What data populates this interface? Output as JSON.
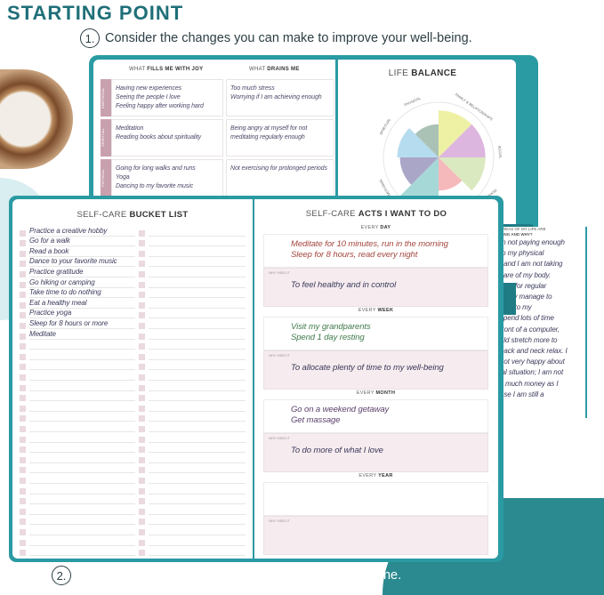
{
  "title": "STARTING POINT",
  "step1": {
    "num": "1.",
    "text": "Consider the changes you can make to improve your well-being."
  },
  "step2": {
    "num": "2.",
    "text": "List the self-care acts you want to include in your routine."
  },
  "colors": {
    "accent": "#1f6f78",
    "cover": "#2a9aa3",
    "tag": "#c9a0ae",
    "why_bg": "#f6ebee"
  },
  "joy": {
    "col1_pre": "WHAT",
    "col1_bold": "FILLS ME WITH JOY",
    "col2_pre": "WHAT",
    "col2_bold": "DRAINS ME",
    "rows": [
      {
        "tag": "EMOTIONAL",
        "joy": [
          "Having new experiences",
          "Seeing the people I love",
          "Feeling happy after working hard"
        ],
        "drain": [
          "Too much stress",
          "Worrying if I am achieving enough"
        ]
      },
      {
        "tag": "SPIRITUAL",
        "joy": [
          "Meditation",
          "Reading books about spirituality"
        ],
        "drain": [
          "Being angry at myself for not",
          "meditating regularly enough"
        ]
      },
      {
        "tag": "PHYSICAL",
        "joy": [
          "Going for long walks and runs",
          "Yoga",
          "Dancing to my favorite music"
        ],
        "drain": [
          "Not exercising for prolonged periods"
        ]
      }
    ]
  },
  "life_balance": {
    "title_pre": "LIFE",
    "title_bold": "BALANCE",
    "labels": [
      "PHYSICAL",
      "FAMILY & RELATIONSHIPS",
      "SOCIAL",
      "PERSONAL DEVELOPMENT",
      "EMOTIONAL",
      "SPIRITUAL"
    ],
    "segments": [
      {
        "color": "#eef0a4",
        "level": 0.85
      },
      {
        "color": "#dcb6df",
        "level": 0.85
      },
      {
        "color": "#dbe9c0",
        "level": 0.85
      },
      {
        "color": "#f6b9bb",
        "level": 0.6
      },
      {
        "color": "#a7d8d8",
        "level": 1.0
      },
      {
        "color": "#aaa6c8",
        "level": 0.7
      },
      {
        "color": "#b6dcef",
        "level": 0.75
      },
      {
        "color": "#aac2b6",
        "level": 0.6
      }
    ]
  },
  "areas": {
    "question": [
      "AREAS OF MY LIFE ARE",
      "KING AND WHY?"
    ],
    "lines": [
      "m not paying enough",
      "to my physical",
      ", and I am not taking",
      "care of my body.",
      "time for regular",
      "rarely manage to",
      "Due to my",
      "spend lots of time",
      "front of a computer,",
      "uld stretch more to",
      "back and neck relax. I",
      "not very happy about",
      "ial situation; I am not",
      "s much money as I",
      "use I am still a"
    ]
  },
  "bucket": {
    "title_pre": "SELF-CARE",
    "title_bold": "BUCKET LIST",
    "items": [
      "Practice a creative hobby",
      "Go for a walk",
      "Read a book",
      "Dance to your favorite music",
      "Practice gratitude",
      "Go hiking or camping",
      "Take time to do nothing",
      "Eat a healthy meal",
      "Practice yoga",
      "Sleep for 8 hours or more",
      "Meditate"
    ]
  },
  "acts": {
    "title_pre": "SELF-CARE",
    "title_bold": "ACTS I WANT TO DO",
    "why_label": "WHY I NEED IT",
    "sections": [
      {
        "pre": "EVERY",
        "bold": "DAY",
        "acts": [
          "Meditate for 10 minutes, run in the morning",
          "Sleep for 8 hours, read every night"
        ],
        "why": "To feel healthy and in control",
        "color": "#a4473f"
      },
      {
        "pre": "EVERY",
        "bold": "WEEK",
        "acts": [
          "Visit my grandparents",
          "Spend 1 day resting"
        ],
        "why": "To allocate plenty of time to my well-being",
        "color": "#3f7a4a"
      },
      {
        "pre": "EVERY",
        "bold": "MONTH",
        "acts": [
          "Go on a weekend getaway",
          "Get massage"
        ],
        "why": "To do more of what I love",
        "color": "#5a3f6a"
      },
      {
        "pre": "EVERY",
        "bold": "YEAR",
        "acts": [],
        "why": "",
        "color": "#333"
      }
    ]
  }
}
